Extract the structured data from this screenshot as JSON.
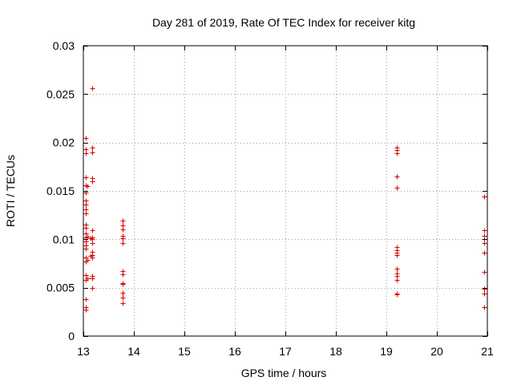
{
  "chart_data": {
    "type": "scatter",
    "title": "Day 281 of 2019, Rate Of TEC Index for receiver kitg",
    "xlabel": "GPS time / hours",
    "ylabel": "ROTI / TECUs",
    "xlim": [
      13,
      21
    ],
    "ylim": [
      0,
      0.03
    ],
    "x_ticks": [
      13,
      14,
      15,
      16,
      17,
      18,
      19,
      20,
      21
    ],
    "x_tick_labels": [
      "13",
      "14",
      "15",
      "16",
      "17",
      "18",
      "19",
      "20",
      "21"
    ],
    "y_ticks": [
      0,
      0.005,
      0.01,
      0.015,
      0.02,
      0.025,
      0.03
    ],
    "y_tick_labels": [
      "0",
      "0.005",
      "0.01",
      "0.015",
      "0.02",
      "0.025",
      "0.03"
    ],
    "grid": true,
    "marker": "+",
    "color": "#dd0000",
    "series": [
      {
        "name": "ROTI",
        "points": [
          [
            13.05,
            0.0205
          ],
          [
            13.05,
            0.0193
          ],
          [
            13.05,
            0.0189
          ],
          [
            13.05,
            0.0164
          ],
          [
            13.05,
            0.0156
          ],
          [
            13.05,
            0.0148
          ],
          [
            13.05,
            0.014
          ],
          [
            13.05,
            0.0136
          ],
          [
            13.05,
            0.0131
          ],
          [
            13.05,
            0.0127
          ],
          [
            13.05,
            0.0115
          ],
          [
            13.05,
            0.0112
          ],
          [
            13.05,
            0.0106
          ],
          [
            13.05,
            0.0102
          ],
          [
            13.05,
            0.0098
          ],
          [
            13.05,
            0.0094
          ],
          [
            13.05,
            0.009
          ],
          [
            13.05,
            0.0081
          ],
          [
            13.05,
            0.0077
          ],
          [
            13.05,
            0.0063
          ],
          [
            13.05,
            0.0058
          ],
          [
            13.05,
            0.0038
          ],
          [
            13.05,
            0.003
          ],
          [
            13.05,
            0.0027
          ],
          [
            13.08,
            0.0155
          ],
          [
            13.08,
            0.0103
          ],
          [
            13.08,
            0.0079
          ],
          [
            13.08,
            0.006
          ],
          [
            13.17,
            0.0256
          ],
          [
            13.17,
            0.0195
          ],
          [
            13.17,
            0.019
          ],
          [
            13.17,
            0.0163
          ],
          [
            13.17,
            0.016
          ],
          [
            13.17,
            0.0109
          ],
          [
            13.17,
            0.0102
          ],
          [
            13.17,
            0.01
          ],
          [
            13.17,
            0.0096
          ],
          [
            13.17,
            0.0087
          ],
          [
            13.17,
            0.0084
          ],
          [
            13.17,
            0.0081
          ],
          [
            13.17,
            0.0062
          ],
          [
            13.17,
            0.006
          ],
          [
            13.17,
            0.005
          ],
          [
            13.14,
            0.0101
          ],
          [
            13.14,
            0.0083
          ],
          [
            13.77,
            0.0119
          ],
          [
            13.77,
            0.0114
          ],
          [
            13.77,
            0.011
          ],
          [
            13.77,
            0.0104
          ],
          [
            13.77,
            0.0101
          ],
          [
            13.77,
            0.0096
          ],
          [
            13.77,
            0.0067
          ],
          [
            13.77,
            0.0064
          ],
          [
            13.77,
            0.0055
          ],
          [
            13.77,
            0.0054
          ],
          [
            13.77,
            0.0045
          ],
          [
            13.77,
            0.004
          ],
          [
            13.77,
            0.0034
          ],
          [
            19.2,
            0.0195
          ],
          [
            19.2,
            0.0192
          ],
          [
            19.2,
            0.0189
          ],
          [
            19.2,
            0.0165
          ],
          [
            19.2,
            0.0153
          ],
          [
            19.2,
            0.0092
          ],
          [
            19.2,
            0.0089
          ],
          [
            19.2,
            0.0086
          ],
          [
            19.2,
            0.0084
          ],
          [
            19.2,
            0.007
          ],
          [
            19.2,
            0.0065
          ],
          [
            19.2,
            0.0062
          ],
          [
            19.2,
            0.0058
          ],
          [
            19.2,
            0.0044
          ],
          [
            19.2,
            0.0043
          ],
          [
            20.93,
            0.0144
          ],
          [
            20.93,
            0.0109
          ],
          [
            20.93,
            0.0104
          ],
          [
            20.93,
            0.01
          ],
          [
            20.93,
            0.0096
          ],
          [
            20.93,
            0.0086
          ],
          [
            20.93,
            0.0066
          ],
          [
            20.93,
            0.0049
          ],
          [
            20.93,
            0.0044
          ],
          [
            20.93,
            0.003
          ]
        ]
      }
    ]
  }
}
